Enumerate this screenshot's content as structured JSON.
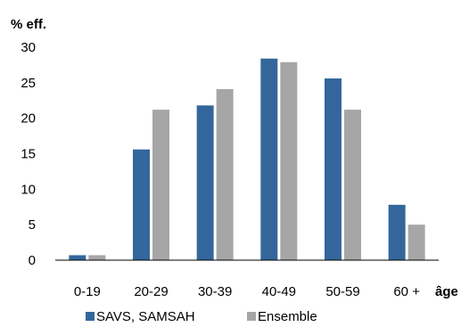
{
  "chart_data": {
    "type": "bar",
    "ylabel": "% eff.",
    "xlabel": "âge",
    "categories": [
      "0-19",
      "20-29",
      "30-39",
      "40-49",
      "50-59",
      "60 +"
    ],
    "ylim": [
      0,
      30
    ],
    "yticks": [
      "0",
      "5",
      "10",
      "15",
      "20",
      "25",
      "30"
    ],
    "grid": false,
    "legend_position": "bottom",
    "series": [
      {
        "name": "SAVS, SAMSAH",
        "color": "#33679c",
        "values": [
          0.7,
          15.6,
          21.8,
          28.4,
          25.6,
          7.8
        ]
      },
      {
        "name": "Ensemble",
        "color": "#a6a6a6",
        "values": [
          0.7,
          21.2,
          24.1,
          27.9,
          21.2,
          5.0
        ]
      }
    ]
  }
}
